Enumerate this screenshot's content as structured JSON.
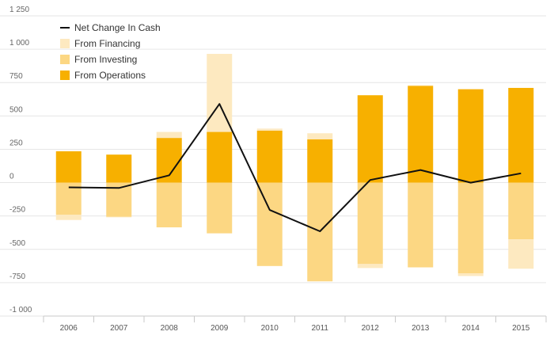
{
  "chart_data": {
    "type": "bar",
    "categories": [
      "2006",
      "2007",
      "2008",
      "2009",
      "2010",
      "2011",
      "2012",
      "2013",
      "2014",
      "2015"
    ],
    "series": [
      {
        "name": "From Operations",
        "kind": "stacked-bar",
        "color": "#f7b000",
        "values": [
          235,
          210,
          335,
          380,
          390,
          325,
          655,
          725,
          700,
          710
        ]
      },
      {
        "name": "From Investing",
        "kind": "stacked-bar",
        "color": "#fcd783",
        "values": [
          -240,
          -255,
          -335,
          -380,
          -625,
          -740,
          -610,
          -635,
          -680,
          -425
        ]
      },
      {
        "name": "From Financing",
        "kind": "stacked-bar",
        "color": "#fde9c0",
        "values": [
          -40,
          -5,
          45,
          585,
          15,
          45,
          -30,
          5,
          -20,
          -220
        ]
      },
      {
        "name": "Net Change In Cash",
        "kind": "line",
        "color": "#111111",
        "values": [
          -35,
          -40,
          55,
          590,
          -205,
          -365,
          20,
          95,
          0,
          70
        ]
      }
    ],
    "yticks": [
      "1 250",
      "1 000",
      "750",
      "500",
      "250",
      "0",
      "-250",
      "-500",
      "-750",
      "-1 000"
    ],
    "ylim": [
      -1000,
      1250
    ],
    "ystep": 250,
    "grid": true,
    "legend": [
      "Net Change In Cash",
      "From Financing",
      "From Investing",
      "From Operations"
    ],
    "legend_position": "top-left",
    "title": "",
    "xlabel": "",
    "ylabel": ""
  }
}
